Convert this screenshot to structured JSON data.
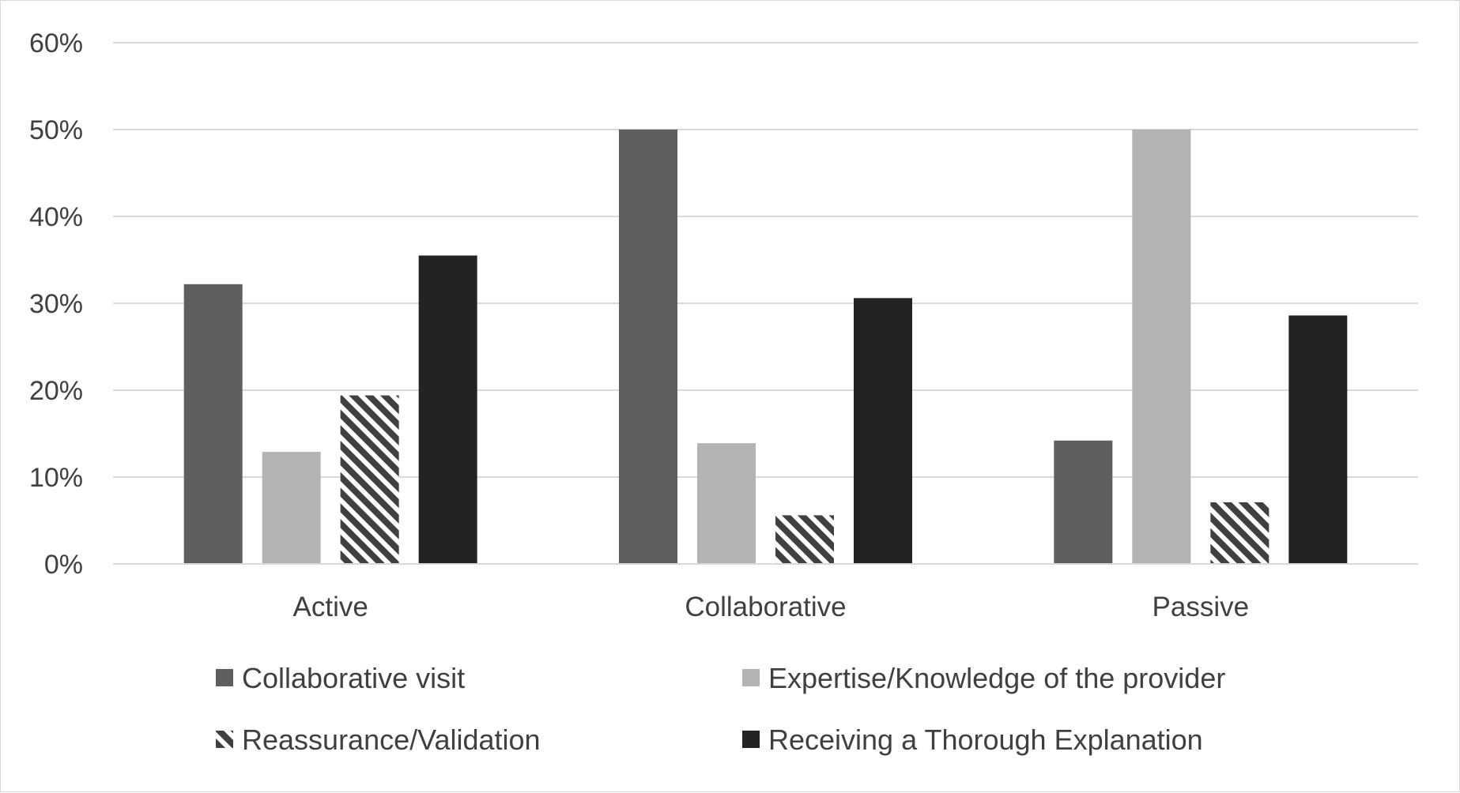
{
  "chart_data": {
    "type": "bar",
    "title": "",
    "xlabel": "",
    "ylabel": "",
    "categories": [
      "Active",
      "Collaborative",
      "Passive"
    ],
    "yticks": [
      "0%",
      "10%",
      "20%",
      "30%",
      "40%",
      "50%",
      "60%"
    ],
    "ylim": [
      0,
      60
    ],
    "grid": true,
    "legend_position": "bottom",
    "series": [
      {
        "name": "Collaborative visit",
        "values": [
          32.2,
          50.0,
          14.2
        ],
        "color": "#5f5f5f",
        "pattern": "solid"
      },
      {
        "name": "Expertise/Knowledge of the provider",
        "values": [
          12.9,
          13.9,
          50.0
        ],
        "color": "#b3b3b3",
        "pattern": "solid"
      },
      {
        "name": "Reassurance/Validation",
        "values": [
          19.4,
          5.6,
          7.1
        ],
        "color": "#404040",
        "pattern": "diagonal-stripes"
      },
      {
        "name": "Receiving a Thorough Explanation",
        "values": [
          35.5,
          30.6,
          28.6
        ],
        "color": "#232323",
        "pattern": "solid"
      }
    ]
  }
}
